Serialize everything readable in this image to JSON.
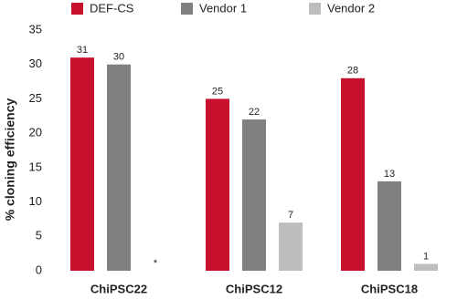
{
  "chart_data": {
    "type": "bar",
    "y_label": "% cloning efficiency",
    "categories": [
      "ChiPSC22",
      "ChiPSC12",
      "ChiPSC18"
    ],
    "series": [
      {
        "name": "DEF-CS",
        "color": "#c8102e",
        "values": [
          31,
          25,
          28
        ]
      },
      {
        "name": "Vendor 1",
        "color": "#808080",
        "values": [
          30,
          22,
          13
        ]
      },
      {
        "name": "Vendor 2",
        "color": "#bdbdbd",
        "values": [
          null,
          7,
          1
        ],
        "value_labels": [
          "*",
          "7",
          "1"
        ]
      }
    ],
    "ylim": [
      0,
      35
    ],
    "yticks": [
      0,
      5,
      10,
      15,
      20,
      25,
      30,
      35
    ],
    "grid": false,
    "legend": "top"
  }
}
